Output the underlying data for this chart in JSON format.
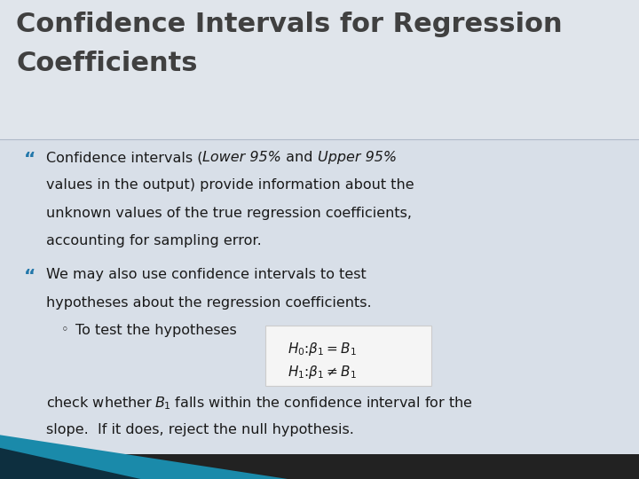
{
  "title_line1": "Confidence Intervals for Regression",
  "title_line2": "Coefficients",
  "title_color": "#404040",
  "title_fontsize": 22,
  "bg_top_color": "#e8ecf0",
  "bg_body_color": "#d8dfe8",
  "bg_title_color": "#e0e5eb",
  "bullet_marker": "“",
  "bullet1_line1a": "Confidence intervals (",
  "bullet1_line1b": "Lower 95%",
  "bullet1_line1c": " and ",
  "bullet1_line1d": "Upper 95%",
  "bullet1_line2": "values in the output) provide information about the",
  "bullet1_line3": "unknown values of the true regression coefficients,",
  "bullet1_line4": "accounting for sampling error.",
  "bullet2_line1": "We may also use confidence intervals to test",
  "bullet2_line2": "hypotheses about the regression coefficients.",
  "sub_bullet": "To test the hypotheses",
  "footer1a": "check whether ",
  "footer1b": "B",
  "footer1c": " falls within the confidence interval for the",
  "footer2": "slope.  If it does, reject the null hypothesis.",
  "text_color": "#1a1a1a",
  "bullet_color": "#2277aa",
  "formula_bg": "#f5f5f5",
  "formula_border": "#cccccc",
  "bottom_teal": "#1a8aaa",
  "bottom_dark": "#0d2f3f",
  "bottom_black": "#111111"
}
